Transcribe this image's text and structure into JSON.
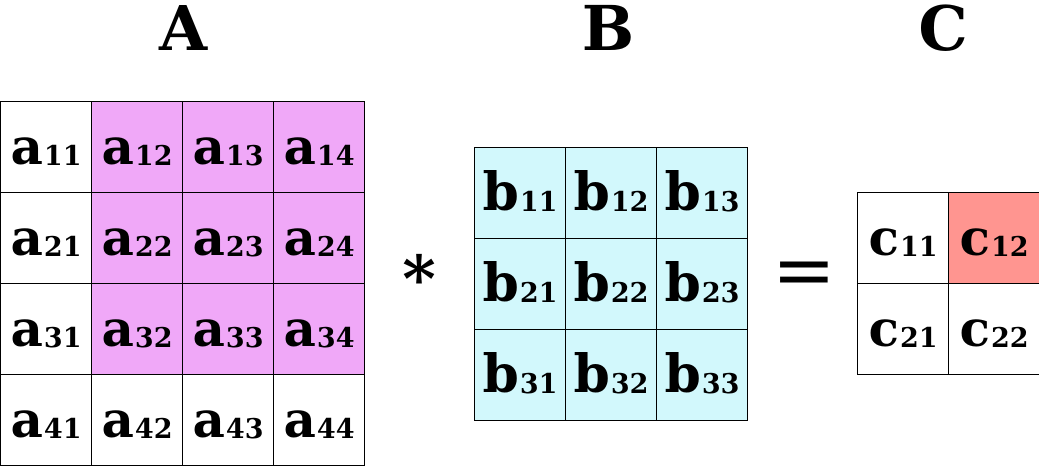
{
  "titles": {
    "a": "A",
    "b": "B",
    "c": "C"
  },
  "operators": {
    "multiply": "*",
    "equals": "="
  },
  "colors": {
    "a_highlight": "#f0a8f8",
    "b_fill": "#d2f8fc",
    "c_highlight": "#ff9590",
    "plain": "#ffffff"
  },
  "matrix_a": [
    [
      {
        "base": "a",
        "sub": "11",
        "hl": false
      },
      {
        "base": "a",
        "sub": "12",
        "hl": true
      },
      {
        "base": "a",
        "sub": "13",
        "hl": true
      },
      {
        "base": "a",
        "sub": "14",
        "hl": true
      }
    ],
    [
      {
        "base": "a",
        "sub": "21",
        "hl": false
      },
      {
        "base": "a",
        "sub": "22",
        "hl": true
      },
      {
        "base": "a",
        "sub": "23",
        "hl": true
      },
      {
        "base": "a",
        "sub": "24",
        "hl": true
      }
    ],
    [
      {
        "base": "a",
        "sub": "31",
        "hl": false
      },
      {
        "base": "a",
        "sub": "32",
        "hl": true
      },
      {
        "base": "a",
        "sub": "33",
        "hl": true
      },
      {
        "base": "a",
        "sub": "34",
        "hl": true
      }
    ],
    [
      {
        "base": "a",
        "sub": "41",
        "hl": false
      },
      {
        "base": "a",
        "sub": "42",
        "hl": false
      },
      {
        "base": "a",
        "sub": "43",
        "hl": false
      },
      {
        "base": "a",
        "sub": "44",
        "hl": false
      }
    ]
  ],
  "matrix_b": [
    [
      {
        "base": "b",
        "sub": "11",
        "hl": true
      },
      {
        "base": "b",
        "sub": "12",
        "hl": true
      },
      {
        "base": "b",
        "sub": "13",
        "hl": true
      }
    ],
    [
      {
        "base": "b",
        "sub": "21",
        "hl": true
      },
      {
        "base": "b",
        "sub": "22",
        "hl": true
      },
      {
        "base": "b",
        "sub": "23",
        "hl": true
      }
    ],
    [
      {
        "base": "b",
        "sub": "31",
        "hl": true
      },
      {
        "base": "b",
        "sub": "32",
        "hl": true
      },
      {
        "base": "b",
        "sub": "33",
        "hl": true
      }
    ]
  ],
  "matrix_c": [
    [
      {
        "base": "c",
        "sub": "11",
        "hl": false
      },
      {
        "base": "c",
        "sub": "12",
        "hl": true
      }
    ],
    [
      {
        "base": "c",
        "sub": "21",
        "hl": false
      },
      {
        "base": "c",
        "sub": "22",
        "hl": false
      }
    ]
  ]
}
